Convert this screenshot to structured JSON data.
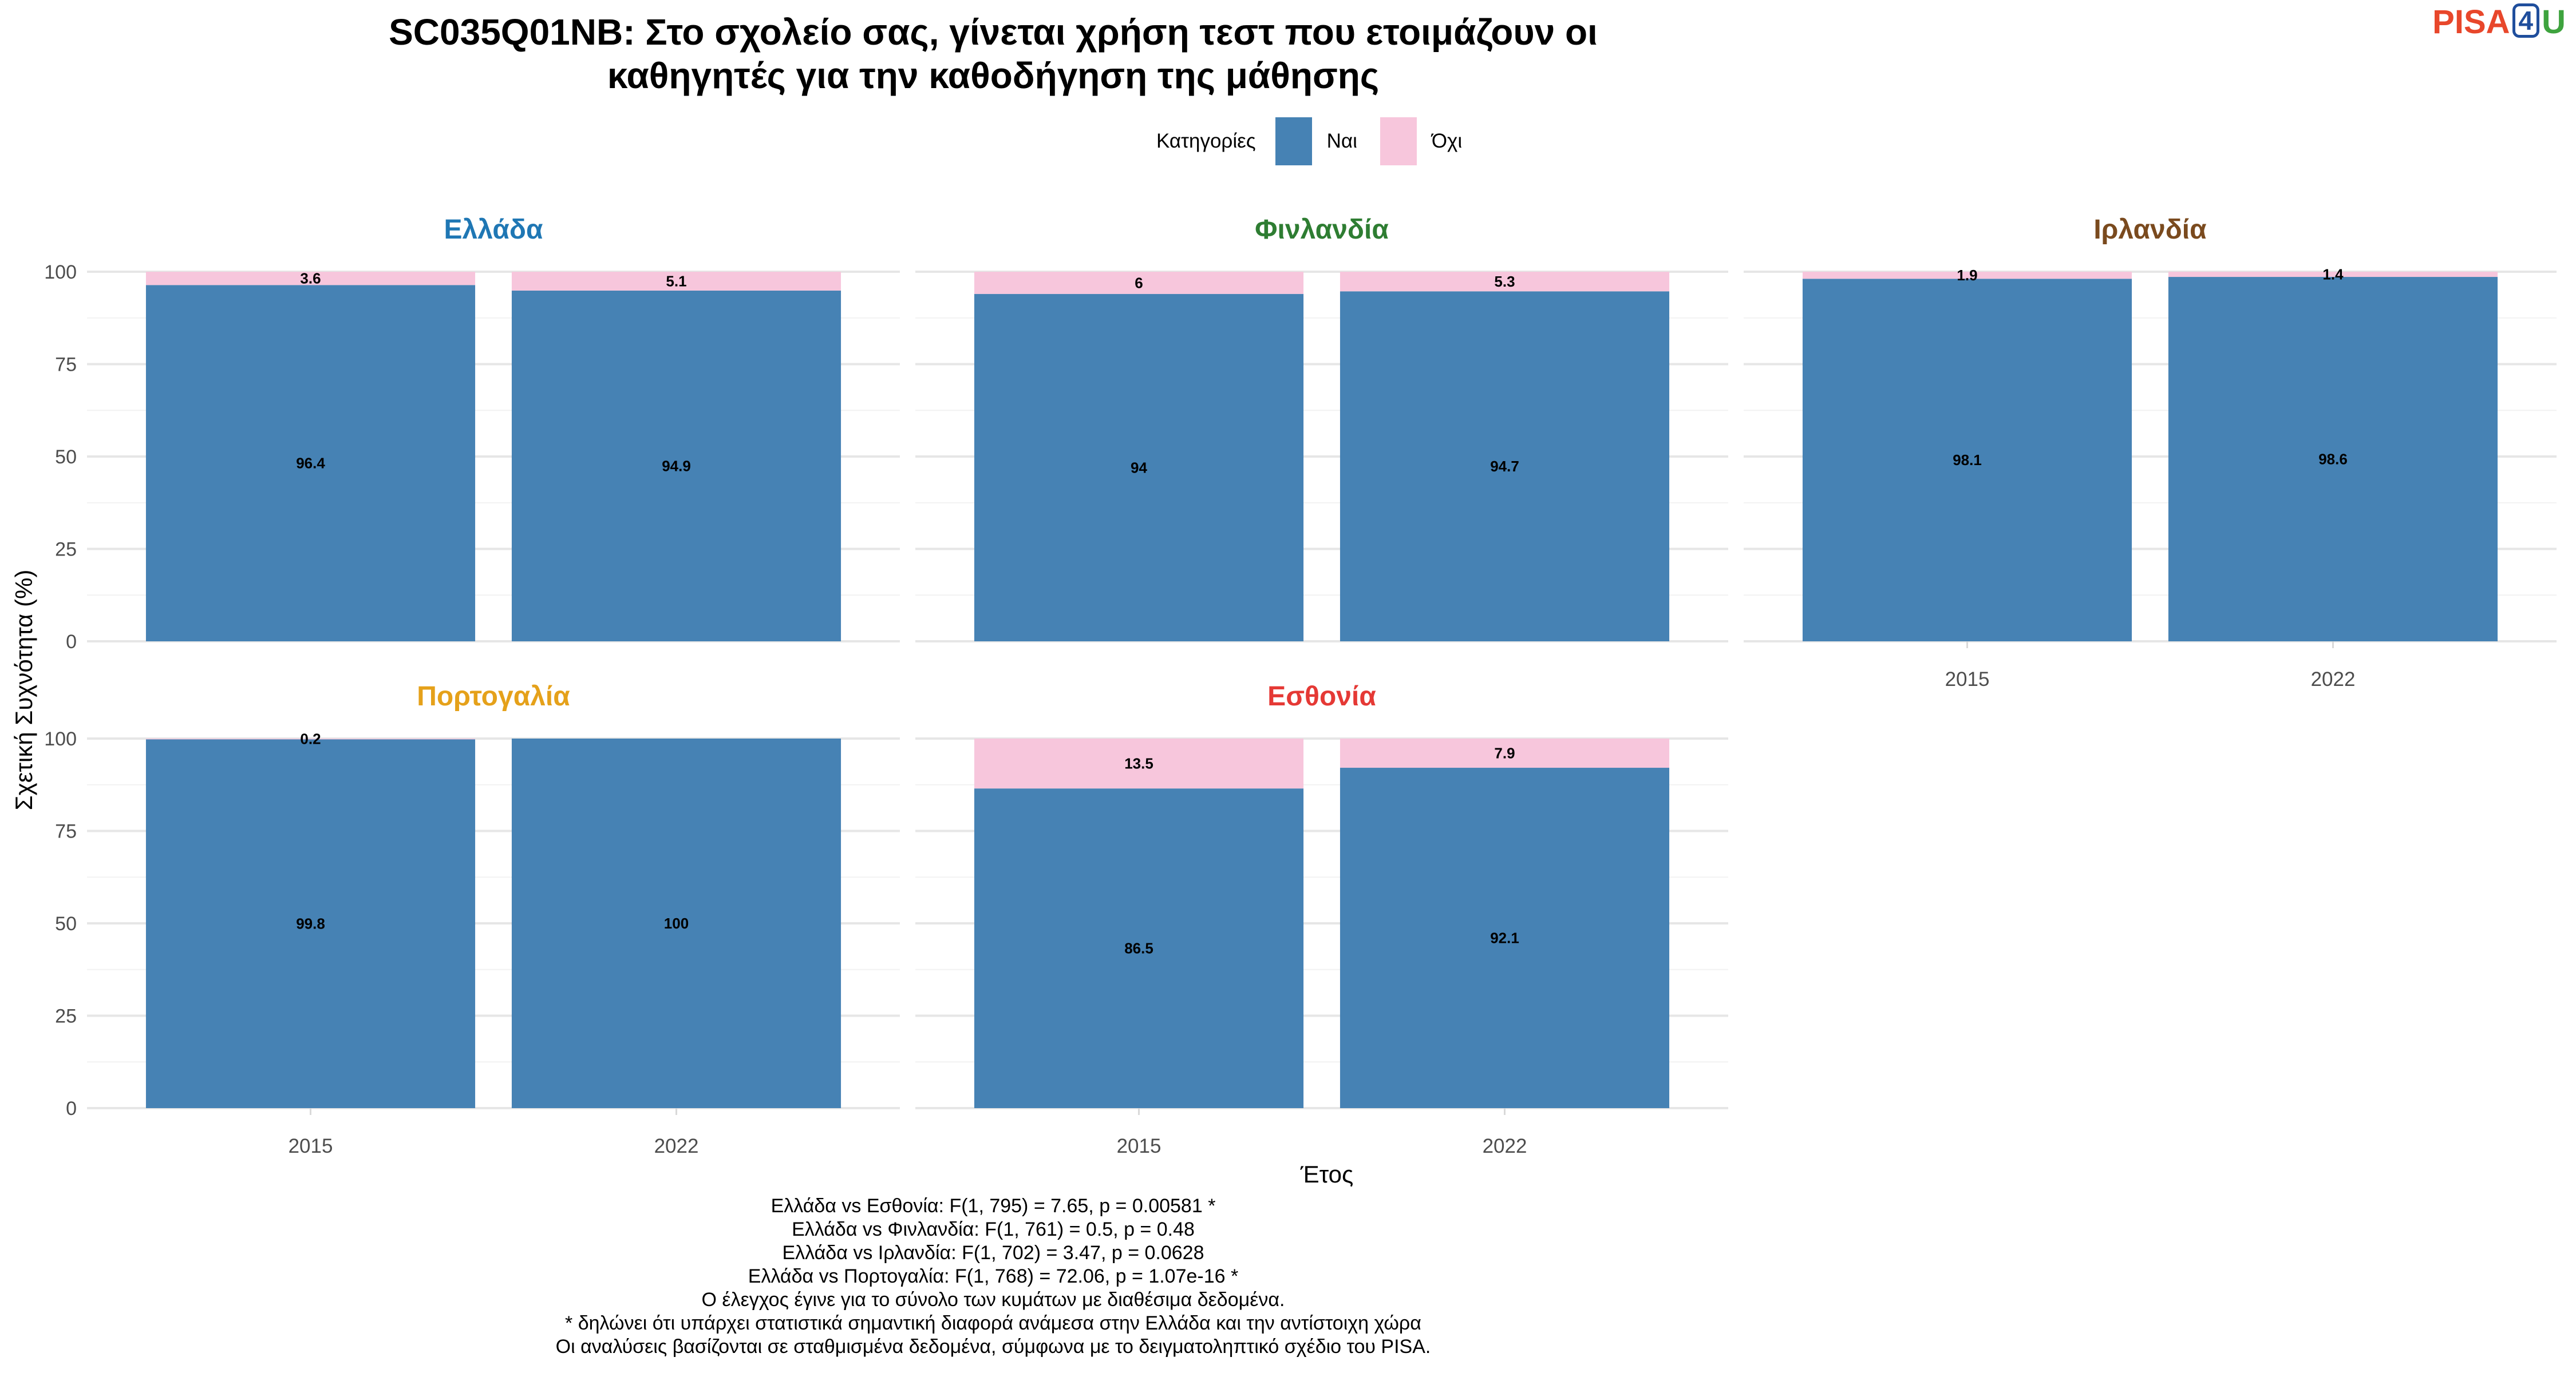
{
  "title": {
    "line1": "SC035Q01NB: Στο σχολείο σας, γίνεται χρήση τεστ που ετοιμάζουν οι",
    "line2": "καθηγητές για την καθοδήγηση της μάθησης"
  },
  "logo": {
    "text_pisa": "PISA",
    "text_4": "4",
    "text_u": "U"
  },
  "legend": {
    "title": "Κατηγορίες",
    "items": [
      {
        "label": "Ναι",
        "color": "#4682b4"
      },
      {
        "label": "Όχι",
        "color": "#f7c6dc"
      }
    ]
  },
  "chart_data": {
    "type": "bar",
    "stacked": true,
    "x_axis_label": "Έτος",
    "y_axis_label": "Σχετική Συχνότητα (%)",
    "ylim": [
      0,
      100
    ],
    "y_ticks": [
      0,
      25,
      50,
      75,
      100
    ],
    "categories": [
      "2015",
      "2022"
    ],
    "series_colors": {
      "Ναι": "#4682b4",
      "Όχι": "#f7c6dc"
    },
    "panels": [
      {
        "name": "Ελλάδα",
        "title_color": "#1f77b4",
        "bars": [
          {
            "year": "2015",
            "yes": 96.4,
            "no": 3.6,
            "yes_label": "96.4",
            "no_label": "3.6"
          },
          {
            "year": "2022",
            "yes": 94.9,
            "no": 5.1,
            "yes_label": "94.9",
            "no_label": "5.1"
          }
        ]
      },
      {
        "name": "Φινλανδία",
        "title_color": "#2e7d32",
        "bars": [
          {
            "year": "2015",
            "yes": 94.0,
            "no": 6.0,
            "yes_label": "94",
            "no_label": "6"
          },
          {
            "year": "2022",
            "yes": 94.7,
            "no": 5.3,
            "yes_label": "94.7",
            "no_label": "5.3"
          }
        ]
      },
      {
        "name": "Ιρλανδία",
        "title_color": "#7a4a1e",
        "bars": [
          {
            "year": "2015",
            "yes": 98.1,
            "no": 1.9,
            "yes_label": "98.1",
            "no_label": "1.9"
          },
          {
            "year": "2022",
            "yes": 98.6,
            "no": 1.4,
            "yes_label": "98.6",
            "no_label": "1.4"
          }
        ]
      },
      {
        "name": "Πορτογαλία",
        "title_color": "#e5a11a",
        "bars": [
          {
            "year": "2015",
            "yes": 99.8,
            "no": 0.2,
            "yes_label": "99.8",
            "no_label": "0.2"
          },
          {
            "year": "2022",
            "yes": 100,
            "no": 0,
            "yes_label": "100",
            "no_label": ""
          }
        ]
      },
      {
        "name": "Εσθονία",
        "title_color": "#e53935",
        "bars": [
          {
            "year": "2015",
            "yes": 86.5,
            "no": 13.5,
            "yes_label": "86.5",
            "no_label": "13.5"
          },
          {
            "year": "2022",
            "yes": 92.1,
            "no": 7.9,
            "yes_label": "92.1",
            "no_label": "7.9"
          }
        ]
      }
    ]
  },
  "footnotes": [
    "Ελλάδα vs Εσθονία: F(1, 795) = 7.65, p = 0.00581 *",
    "Ελλάδα vs Φινλανδία: F(1, 761) = 0.5, p = 0.48",
    "Ελλάδα vs Ιρλανδία: F(1, 702) = 3.47, p = 0.0628",
    "Ελλάδα vs Πορτογαλία: F(1, 768) = 72.06, p = 1.07e-16 *",
    "Ο έλεγχος έγινε για το σύνολο των κυμάτων με διαθέσιμα δεδομένα.",
    "* δηλώνει ότι υπάρχει στατιστικά σημαντική διαφορά ανάμεσα στην Ελλάδα και την αντίστοιχη χώρα",
    "Οι αναλύσεις βασίζονται σε σταθμισμένα δεδομένα, σύμφωνα με το δειγματοληπτικό σχέδιο του PISA."
  ]
}
